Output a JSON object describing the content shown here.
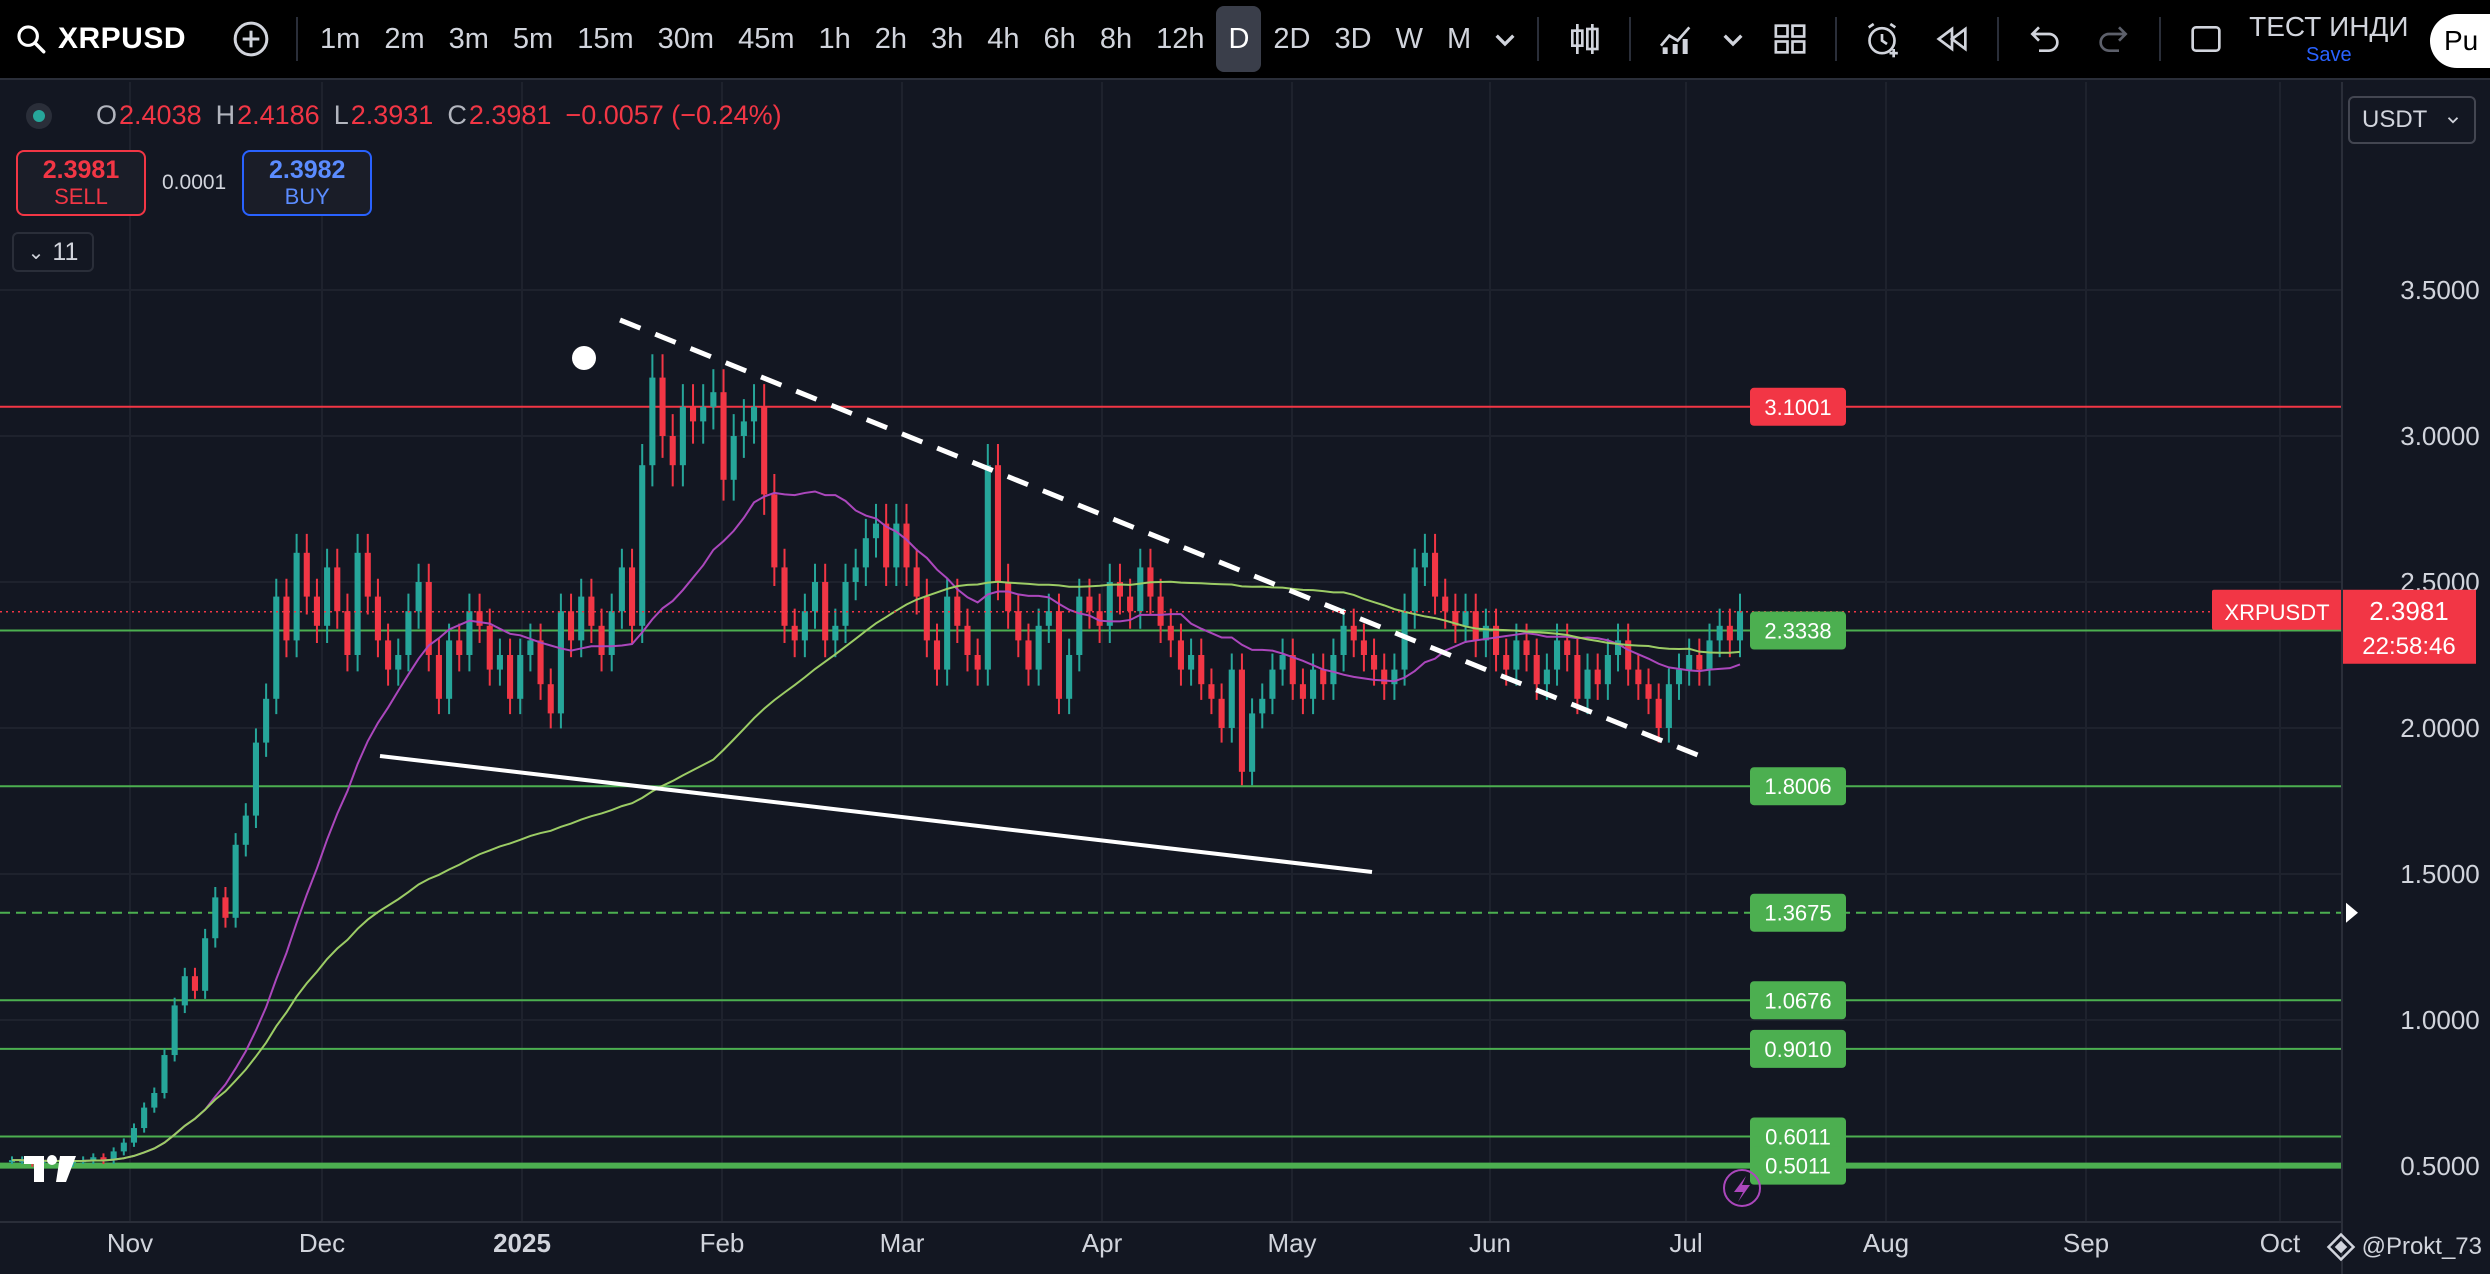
{
  "toolbar": {
    "symbol": "XRPUSD",
    "intervals": [
      "1m",
      "2m",
      "3m",
      "5m",
      "15m",
      "30m",
      "45m",
      "1h",
      "2h",
      "3h",
      "4h",
      "6h",
      "8h",
      "12h",
      "D",
      "2D",
      "3D",
      "W",
      "M"
    ],
    "active_interval": "D",
    "indicators_label": "ТЕСТ ИНДИ",
    "save_label": "Save",
    "publish_label": "Pu",
    "icons": [
      "search-icon",
      "add-symbol-icon",
      "chevron-down-icon",
      "candles-icon",
      "indicators-icon",
      "chevron-down-icon",
      "layouts-icon",
      "alert-icon",
      "replay-icon",
      "undo-icon",
      "redo-icon",
      "fullscreen-icon"
    ]
  },
  "legend": {
    "o_label": "O",
    "o": "2.4038",
    "h_label": "H",
    "h": "2.4186",
    "l_label": "L",
    "l": "2.3931",
    "c_label": "C",
    "c": "2.3981",
    "change": "−0.0057 (−0.24%)"
  },
  "trade": {
    "sell_price": "2.3981",
    "sell_label": "SELL",
    "spread": "0.0001",
    "buy_price": "2.3982",
    "buy_label": "BUY"
  },
  "indicators_count": "11",
  "currency": "USDT",
  "price_tag": {
    "symbol": "XRPUSDT",
    "price": "2.3981",
    "countdown": "22:58:46"
  },
  "levels": [
    {
      "value": 3.1001,
      "label": "3.1001",
      "color": "#f23645"
    },
    {
      "value": 2.3338,
      "label": "2.3338",
      "color": "#4caf50"
    },
    {
      "value": 1.8006,
      "label": "1.8006",
      "color": "#4caf50"
    },
    {
      "value": 1.3675,
      "label": "1.3675",
      "color": "#4caf50",
      "dashed": true
    },
    {
      "value": 1.0676,
      "label": "1.0676",
      "color": "#4caf50"
    },
    {
      "value": 0.901,
      "label": "0.9010",
      "color": "#4caf50"
    },
    {
      "value": 0.6011,
      "label": "0.6011",
      "color": "#4caf50"
    },
    {
      "value": 0.5011,
      "label": "0.5011",
      "color": "#4caf50"
    }
  ],
  "credit": "@Prokt_73",
  "chart_data": {
    "type": "candlestick",
    "y_axis": {
      "ticks": [
        "3.5000",
        "3.0000",
        "2.5000",
        "2.0000",
        "1.5000",
        "1.0000",
        "0.5000"
      ],
      "range": [
        0.35,
        3.7
      ]
    },
    "x_axis": {
      "ticks": [
        "Nov",
        "Dec",
        "2025",
        "Feb",
        "Mar",
        "Apr",
        "May",
        "Jun",
        "Jul",
        "Aug",
        "Sep",
        "Oct"
      ]
    },
    "colors": {
      "up": "#26a69a",
      "down": "#f23645",
      "ma_fast": "#ab47bc",
      "ma_slow": "#9ccc65"
    },
    "closes": [
      0.52,
      0.52,
      0.51,
      0.52,
      0.52,
      0.51,
      0.52,
      0.52,
      0.53,
      0.52,
      0.55,
      0.58,
      0.63,
      0.7,
      0.75,
      0.88,
      1.05,
      1.15,
      1.1,
      1.28,
      1.42,
      1.35,
      1.6,
      1.7,
      1.95,
      2.1,
      2.45,
      2.3,
      2.6,
      2.45,
      2.35,
      2.55,
      2.4,
      2.25,
      2.6,
      2.45,
      2.3,
      2.2,
      2.25,
      2.4,
      2.5,
      2.25,
      2.1,
      2.3,
      2.25,
      2.4,
      2.35,
      2.2,
      2.25,
      2.1,
      2.25,
      2.3,
      2.15,
      2.05,
      2.4,
      2.3,
      2.45,
      2.35,
      2.25,
      2.4,
      2.55,
      2.35,
      2.9,
      3.2,
      3.0,
      2.9,
      3.1,
      3.05,
      3.1,
      3.15,
      2.85,
      3.0,
      3.05,
      3.1,
      2.8,
      2.55,
      2.35,
      2.3,
      2.4,
      2.5,
      2.3,
      2.35,
      2.5,
      2.55,
      2.65,
      2.7,
      2.55,
      2.7,
      2.55,
      2.45,
      2.3,
      2.2,
      2.45,
      2.35,
      2.25,
      2.2,
      2.9,
      2.5,
      2.4,
      2.3,
      2.2,
      2.35,
      2.4,
      2.1,
      2.25,
      2.45,
      2.4,
      2.35,
      2.5,
      2.45,
      2.4,
      2.55,
      2.45,
      2.35,
      2.3,
      2.2,
      2.25,
      2.15,
      2.1,
      2.0,
      2.2,
      1.85,
      2.05,
      2.1,
      2.2,
      2.25,
      2.15,
      2.1,
      2.2,
      2.15,
      2.25,
      2.35,
      2.3,
      2.25,
      2.2,
      2.15,
      2.2,
      2.4,
      2.55,
      2.6,
      2.45,
      2.4,
      2.35,
      2.4,
      2.3,
      2.35,
      2.25,
      2.2,
      2.3,
      2.25,
      2.15,
      2.2,
      2.3,
      2.25,
      2.1,
      2.2,
      2.15,
      2.25,
      2.3,
      2.2,
      2.15,
      2.1,
      2.0,
      2.15,
      2.2,
      2.25,
      2.2,
      2.3,
      2.35,
      2.3,
      2.4
    ]
  }
}
